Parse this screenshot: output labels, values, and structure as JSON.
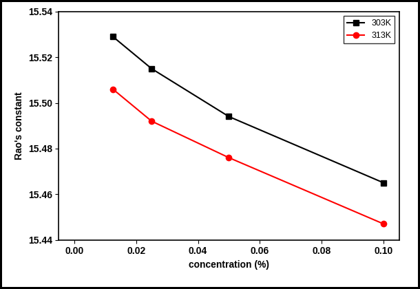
{
  "chart_data": {
    "type": "line",
    "x_label": "concentration (%)",
    "y_label": "Rao's constant",
    "x": [
      0.0125,
      0.025,
      0.05,
      0.1
    ],
    "series": [
      {
        "name": "303K",
        "color": "#000000",
        "marker": "square",
        "line_style": "solid",
        "values": [
          15.529,
          15.515,
          15.494,
          15.465
        ]
      },
      {
        "name": "313K",
        "color": "#ff0000",
        "marker": "circle",
        "line_style": "solid",
        "values": [
          15.506,
          15.492,
          15.476,
          15.447
        ]
      }
    ],
    "xlim": [
      -0.005,
      0.105
    ],
    "xticks": [
      {
        "value": 0.0,
        "label": "0.00"
      },
      0.02,
      0.04,
      0.06,
      0.08,
      {
        "value": 0.1,
        "label": "0.10"
      }
    ],
    "ylim": [
      15.44,
      15.54
    ],
    "yticks": [
      15.44,
      15.46,
      15.48,
      15.5,
      {
        "value": 15.5,
        "label": "15.50"
      },
      15.52,
      15.54
    ],
    "legend": "upper right",
    "grid": false
  }
}
